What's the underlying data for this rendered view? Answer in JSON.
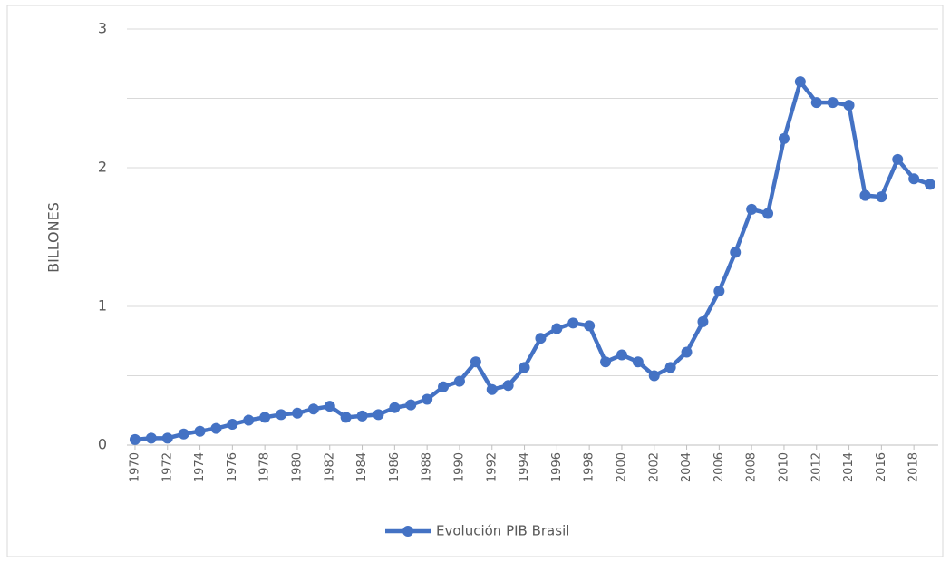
{
  "chart_data": {
    "type": "line",
    "y_label": "BILLONES",
    "x": [
      1970,
      1971,
      1972,
      1973,
      1974,
      1975,
      1976,
      1977,
      1978,
      1979,
      1980,
      1981,
      1982,
      1983,
      1984,
      1985,
      1986,
      1987,
      1988,
      1989,
      1990,
      1991,
      1992,
      1993,
      1994,
      1995,
      1996,
      1997,
      1998,
      1999,
      2000,
      2001,
      2002,
      2003,
      2004,
      2005,
      2006,
      2007,
      2008,
      2009,
      2010,
      2011,
      2012,
      2013,
      2014,
      2015,
      2016,
      2017,
      2018,
      2019
    ],
    "series": [
      {
        "name": "Evolución PIB Brasil",
        "color": "#4472c4",
        "values": [
          0.04,
          0.05,
          0.05,
          0.08,
          0.1,
          0.12,
          0.15,
          0.18,
          0.2,
          0.22,
          0.23,
          0.26,
          0.28,
          0.2,
          0.21,
          0.22,
          0.27,
          0.29,
          0.33,
          0.42,
          0.46,
          0.6,
          0.4,
          0.43,
          0.56,
          0.77,
          0.84,
          0.88,
          0.86,
          0.6,
          0.65,
          0.6,
          0.5,
          0.56,
          0.67,
          0.89,
          1.11,
          1.39,
          1.7,
          1.67,
          2.21,
          2.62,
          2.47,
          2.47,
          2.45,
          1.8,
          1.79,
          2.06,
          1.92,
          1.88
        ]
      }
    ],
    "xlim": [
      1969.5,
      2019.5
    ],
    "xticks": [
      1970,
      1972,
      1974,
      1976,
      1978,
      1980,
      1982,
      1984,
      1986,
      1988,
      1990,
      1992,
      1994,
      1996,
      1998,
      2000,
      2002,
      2004,
      2006,
      2008,
      2010,
      2012,
      2014,
      2016,
      2018
    ],
    "ylim": [
      0,
      3
    ],
    "yticks": [
      0,
      1,
      2,
      3
    ],
    "minor_yticks": [
      0.5,
      1.5,
      2.5
    ],
    "grid": true,
    "legend": "bottom"
  }
}
